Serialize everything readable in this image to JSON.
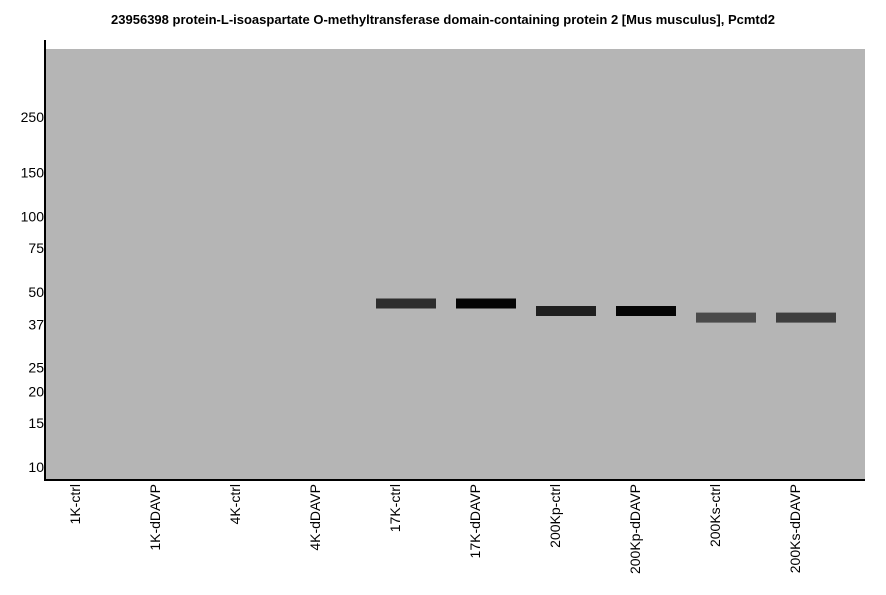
{
  "chart_data": {
    "type": "western-blot",
    "title": "23956398 protein-L-isoaspartate O-methyltransferase domain-containing protein 2 [Mus musculus], Pcmtd2",
    "y_scale": "log",
    "y_ticks": [
      250,
      150,
      100,
      75,
      50,
      37,
      25,
      20,
      15,
      10
    ],
    "colors": {
      "membrane": "#b5b5b5",
      "axis": "#000000"
    },
    "lanes": [
      {
        "label": "1K-ctrl",
        "band": null
      },
      {
        "label": "1K-dDAVP",
        "band": null
      },
      {
        "label": "4K-ctrl",
        "band": null
      },
      {
        "label": "4K-dDAVP",
        "band": null
      },
      {
        "label": "17K-ctrl",
        "band": {
          "mw": 45,
          "color": "#2d2d2d"
        }
      },
      {
        "label": "17K-dDAVP",
        "band": {
          "mw": 45,
          "color": "#050505"
        }
      },
      {
        "label": "200Kp-ctrl",
        "band": {
          "mw": 42,
          "color": "#1f1f1f"
        }
      },
      {
        "label": "200Kp-dDAVP",
        "band": {
          "mw": 42,
          "color": "#050505"
        }
      },
      {
        "label": "200Ks-ctrl",
        "band": {
          "mw": 39.5,
          "color": "#4a4a4a"
        }
      },
      {
        "label": "200Ks-dDAVP",
        "band": {
          "mw": 39.5,
          "color": "#3e3e3e"
        }
      }
    ]
  }
}
